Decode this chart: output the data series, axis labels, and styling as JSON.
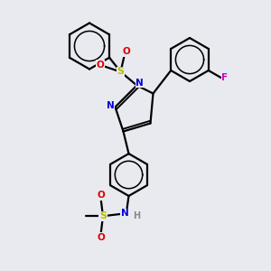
{
  "bg_color": "#e8eaf0",
  "line_color": "#000000",
  "N_color": "#0000dd",
  "O_color": "#dd0000",
  "F_color": "#cc00cc",
  "S_color": "#bbbb00",
  "H_color": "#888888",
  "lw": 1.6,
  "figsize": [
    3.0,
    3.0
  ],
  "dpi": 100,
  "xlim": [
    0,
    10
  ],
  "ylim": [
    0,
    10
  ]
}
